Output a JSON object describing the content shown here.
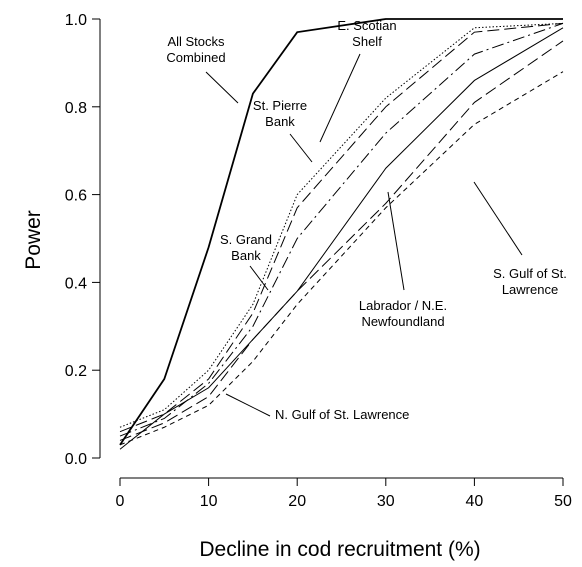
{
  "chart_data": {
    "type": "line",
    "xlabel": "Decline in cod recruitment (%)",
    "ylabel": "Power",
    "x": [
      0,
      5,
      10,
      15,
      20,
      30,
      40,
      50
    ],
    "xlim": [
      0,
      50
    ],
    "xticks": [
      0,
      10,
      20,
      30,
      40,
      50
    ],
    "ylim": [
      0,
      1
    ],
    "yticks": [
      {
        "value": 0,
        "label": "0.0"
      },
      0.2,
      0.4,
      0.6,
      0.8,
      {
        "value": 1,
        "label": "1.0"
      }
    ],
    "series": [
      {
        "name": "All Stocks Combined",
        "color": "#000000",
        "dash": "solid",
        "width": 1.8,
        "values": [
          0.03,
          0.18,
          0.48,
          0.83,
          0.97,
          1.0,
          1.0,
          1.0
        ]
      },
      {
        "name": "St. Pierre Bank",
        "color": "#000000",
        "dash": "dotted",
        "width": 1,
        "values": [
          0.07,
          0.11,
          0.2,
          0.35,
          0.6,
          0.82,
          0.98,
          0.99
        ]
      },
      {
        "name": "S. Grand Bank",
        "color": "#000000",
        "dash": "longdash",
        "width": 1,
        "values": [
          0.06,
          0.1,
          0.18,
          0.33,
          0.57,
          0.8,
          0.97,
          0.99
        ]
      },
      {
        "name": "E. Scotian Shelf",
        "color": "#000000",
        "dash": "dashdot",
        "width": 1,
        "values": [
          0.05,
          0.09,
          0.17,
          0.3,
          0.5,
          0.74,
          0.92,
          0.99
        ]
      },
      {
        "name": "Labrador / N.E. Newfoundland",
        "color": "#000000",
        "dash": "solid",
        "width": 1,
        "values": [
          0.02,
          0.1,
          0.16,
          0.27,
          0.38,
          0.66,
          0.86,
          0.98
        ]
      },
      {
        "name": "S. Gulf of St. Lawrence",
        "color": "#000000",
        "dash": "longdash",
        "width": 1,
        "values": [
          0.04,
          0.08,
          0.14,
          0.27,
          0.38,
          0.58,
          0.81,
          0.95
        ]
      },
      {
        "name": "N. Gulf of St. Lawrence",
        "color": "#000000",
        "dash": "shortdash",
        "width": 1,
        "values": [
          0.03,
          0.07,
          0.12,
          0.22,
          0.35,
          0.57,
          0.76,
          0.88
        ]
      }
    ]
  }
}
